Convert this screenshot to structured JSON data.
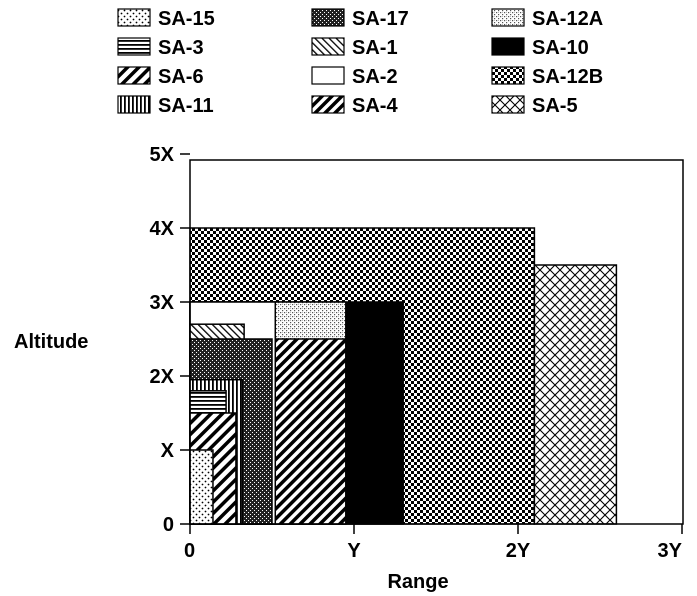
{
  "chart_data": {
    "type": "bar",
    "xlabel": "Range",
    "ylabel": "Altitude",
    "xlim": [
      0,
      3
    ],
    "ylim": [
      0,
      5
    ],
    "x_ticks": [
      "0",
      "Y",
      "2Y",
      "3Y"
    ],
    "y_ticks": [
      "0",
      "X",
      "2X",
      "3X",
      "4X",
      "5X"
    ],
    "series": [
      {
        "name": "SA-12B",
        "pattern": "checker",
        "range": 2.1,
        "altitude": 4.0
      },
      {
        "name": "SA-5",
        "pattern": "crosshatch",
        "range_start": 2.1,
        "range": 2.6,
        "altitude": 3.5
      },
      {
        "name": "SA-10",
        "pattern": "solid",
        "range": 1.3,
        "altitude": 3.0
      },
      {
        "name": "SA-12A",
        "pattern": "stipple",
        "range": 0.95,
        "altitude": 3.0
      },
      {
        "name": "SA-4",
        "pattern": "diagonal-heavy",
        "range": 0.95,
        "altitude": 2.5
      },
      {
        "name": "SA-2",
        "pattern": "blank",
        "range": 0.52,
        "altitude": 3.0
      },
      {
        "name": "SA-1",
        "pattern": "diagonal-light",
        "range": 0.33,
        "altitude": 2.7
      },
      {
        "name": "SA-17",
        "pattern": "dark-stipple",
        "range": 0.5,
        "altitude": 2.5
      },
      {
        "name": "SA-11",
        "pattern": "vertical",
        "range": 0.32,
        "altitude": 1.95
      },
      {
        "name": "SA-3",
        "pattern": "horizontal",
        "range": 0.22,
        "altitude": 1.8
      },
      {
        "name": "SA-6",
        "pattern": "diagonal",
        "range": 0.28,
        "altitude": 1.5
      },
      {
        "name": "SA-15",
        "pattern": "dots",
        "range": 0.14,
        "altitude": 1.0
      }
    ],
    "legend": {
      "placement": "top",
      "columns": [
        [
          "SA-15",
          "SA-3",
          "SA-6",
          "SA-11"
        ],
        [
          "SA-17",
          "SA-1",
          "SA-2",
          "SA-4"
        ],
        [
          "SA-12A",
          "SA-10",
          "SA-12B",
          "SA-5"
        ]
      ]
    },
    "grid": false
  }
}
